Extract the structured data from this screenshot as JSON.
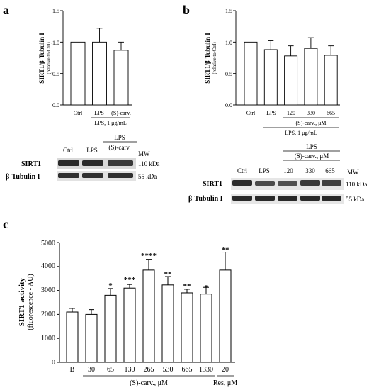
{
  "chart_data": [
    {
      "panel": "a",
      "type": "bar",
      "ylabel": "SIRT1/β-Tubulin I",
      "ylabel_sub": "(relative to Ctrl)",
      "ylim": [
        0,
        1.5
      ],
      "yticks": [
        "0.0",
        "0.5",
        "1.0",
        "1.5"
      ],
      "categories": [
        "Ctrl",
        "LPS",
        "(S)-carv."
      ],
      "values": [
        1.0,
        1.0,
        0.87
      ],
      "errors": [
        0,
        0.22,
        0.13
      ],
      "group_label": "LPS, 1 μg/mL",
      "blot": {
        "header": "LPS",
        "lanes": [
          "Ctrl",
          "LPS",
          "(S)-carv."
        ],
        "rows": [
          "SIRT1",
          "β-Tubulin I"
        ],
        "mw_header": "MW",
        "mw": [
          "110 kDa",
          "55 kDa"
        ]
      }
    },
    {
      "panel": "b",
      "type": "bar",
      "ylabel": "SIRT1/β-Tubulin I",
      "ylabel_sub": "(relative to Ctrl)",
      "ylim": [
        0,
        1.5
      ],
      "yticks": [
        "0.0",
        "0.5",
        "1.0",
        "1.5"
      ],
      "categories": [
        "Ctrl",
        "LPS",
        "120",
        "330",
        "665"
      ],
      "values": [
        1.0,
        0.88,
        0.78,
        0.9,
        0.79
      ],
      "errors": [
        0,
        0.14,
        0.16,
        0.17,
        0.15
      ],
      "sub_label": "(S)-carv., μM",
      "group_label": "LPS, 1 μg/mL",
      "blot": {
        "header1": "LPS",
        "header2": "(S)-carv., μM",
        "lanes": [
          "Ctrl",
          "LPS",
          "120",
          "330",
          "665"
        ],
        "rows": [
          "SIRT1",
          "β-Tubulin I"
        ],
        "mw_header": "MW",
        "mw": [
          "110 kDa",
          "55 kDa"
        ]
      }
    },
    {
      "panel": "c",
      "type": "bar",
      "ylabel": "SIRT1 activity",
      "ylabel_sub": "(fluorescence - AU)",
      "ylim": [
        0,
        5000
      ],
      "yticks": [
        "0",
        "1000",
        "2000",
        "3000",
        "4000",
        "5000"
      ],
      "categories": [
        "B",
        "30",
        "65",
        "130",
        "265",
        "530",
        "665",
        "1330",
        "20"
      ],
      "values": [
        2100,
        2000,
        2800,
        3100,
        3850,
        3230,
        2900,
        2850,
        3850
      ],
      "errors": [
        150,
        200,
        280,
        150,
        450,
        350,
        150,
        280,
        750
      ],
      "significance": [
        "",
        "",
        "*",
        "***",
        "****",
        "**",
        "**",
        "*",
        "**"
      ],
      "group_labels": [
        "(S)-carv., μM",
        "Res, μM"
      ]
    }
  ],
  "panel_letters": [
    "a",
    "b",
    "c"
  ]
}
